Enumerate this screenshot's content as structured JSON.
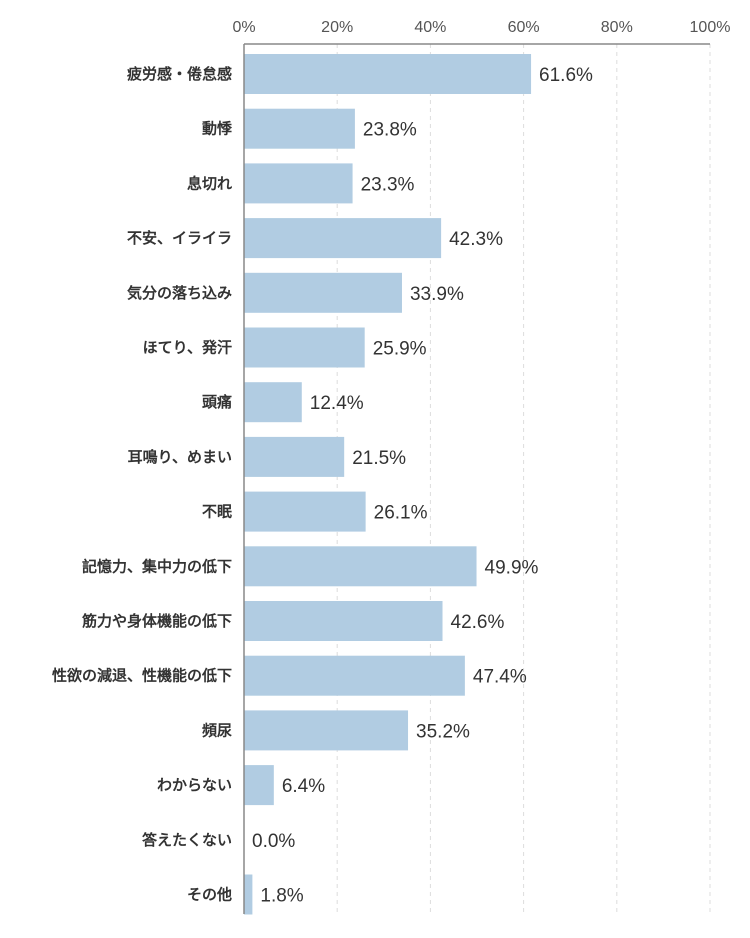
{
  "chart_data": {
    "type": "bar",
    "orientation": "horizontal",
    "title": "",
    "xlabel": "",
    "ylabel": "",
    "xlim": [
      0,
      100
    ],
    "x_ticks": [
      "0%",
      "20%",
      "40%",
      "60%",
      "80%",
      "100%"
    ],
    "x_tick_values": [
      0,
      20,
      40,
      60,
      80,
      100
    ],
    "grid": "vertical dashed",
    "legend": "none",
    "bar_color": "#b1cce2",
    "categories": [
      "疲労感・倦怠感",
      "動悸",
      "息切れ",
      "不安、イライラ",
      "気分の落ち込み",
      "ほてり、発汗",
      "頭痛",
      "耳鳴り、めまい",
      "不眠",
      "記憶力、集中力の低下",
      "筋力や身体機能の低下",
      "性欲の減退、性機能の低下",
      "頻尿",
      "わからない",
      "答えたくない",
      "その他"
    ],
    "values": [
      61.6,
      23.8,
      23.3,
      42.3,
      33.9,
      25.9,
      12.4,
      21.5,
      26.1,
      49.9,
      42.6,
      47.4,
      35.2,
      6.4,
      0.0,
      1.8
    ],
    "value_labels": [
      "61.6%",
      "23.8%",
      "23.3%",
      "42.3%",
      "33.9%",
      "25.9%",
      "12.4%",
      "21.5%",
      "26.1%",
      "49.9%",
      "42.6%",
      "47.4%",
      "35.2%",
      "6.4%",
      "0.0%",
      "1.8%"
    ]
  }
}
